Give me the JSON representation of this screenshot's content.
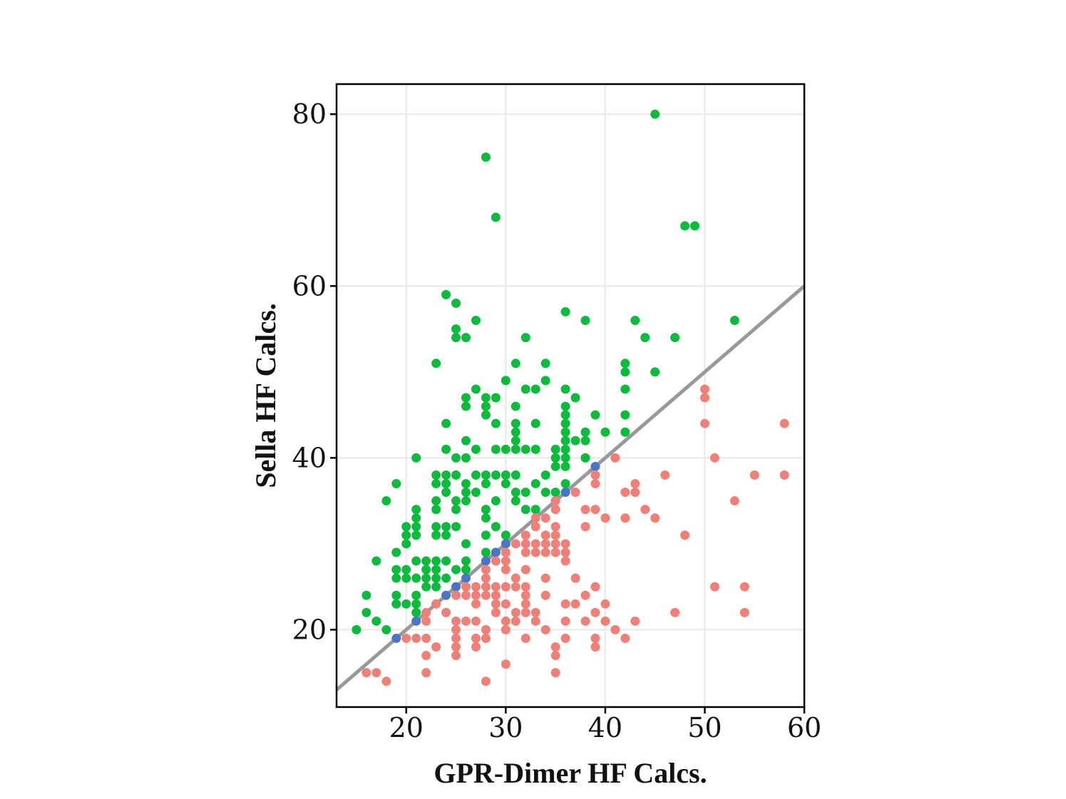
{
  "chart_data": {
    "type": "scatter",
    "title": "",
    "xlabel": "GPR-Dimer HF Calcs.",
    "ylabel": "Sella HF Calcs.",
    "xlim": [
      13,
      60
    ],
    "ylim": [
      11,
      83.5
    ],
    "x_ticks": [
      20,
      30,
      40,
      50,
      60
    ],
    "y_ticks": [
      20,
      40,
      60,
      80
    ],
    "grid": true,
    "legend": "none",
    "reference_line": {
      "from": [
        13,
        13
      ],
      "to": [
        60,
        60
      ],
      "color": "#999999"
    },
    "colors": {
      "above": "#0BBB3B",
      "on": "#4A74C8",
      "below": "#F07F78"
    },
    "series": [
      {
        "color_key": "above",
        "points": [
          [
            45,
            80
          ],
          [
            28,
            75
          ],
          [
            29,
            68
          ],
          [
            48,
            67
          ],
          [
            49,
            67
          ],
          [
            24,
            59
          ],
          [
            25,
            58
          ],
          [
            36,
            57
          ],
          [
            27,
            56
          ],
          [
            38,
            56
          ],
          [
            43,
            56
          ],
          [
            53,
            56
          ],
          [
            25,
            55
          ],
          [
            25,
            54
          ],
          [
            26,
            54
          ],
          [
            32,
            54
          ],
          [
            44,
            54
          ],
          [
            47,
            54
          ],
          [
            23,
            51
          ],
          [
            31,
            51
          ],
          [
            34,
            51
          ],
          [
            42,
            51
          ],
          [
            42,
            50
          ],
          [
            45,
            50
          ],
          [
            30,
            49
          ],
          [
            34,
            49
          ],
          [
            32,
            48
          ],
          [
            33,
            48
          ],
          [
            36,
            48
          ],
          [
            42,
            48
          ],
          [
            27,
            48
          ],
          [
            26,
            47
          ],
          [
            28,
            47
          ],
          [
            29,
            47
          ],
          [
            37,
            47
          ],
          [
            26,
            46
          ],
          [
            28,
            46
          ],
          [
            31,
            46
          ],
          [
            36,
            46
          ],
          [
            28,
            45
          ],
          [
            36,
            45
          ],
          [
            39,
            45
          ],
          [
            42,
            45
          ],
          [
            24,
            44
          ],
          [
            29,
            44
          ],
          [
            31,
            44
          ],
          [
            33,
            44
          ],
          [
            36,
            44
          ],
          [
            31,
            43
          ],
          [
            36,
            43
          ],
          [
            38,
            43
          ],
          [
            40,
            43
          ],
          [
            42,
            43
          ],
          [
            26,
            42
          ],
          [
            31,
            42
          ],
          [
            36,
            42
          ],
          [
            37,
            42
          ],
          [
            38,
            42
          ],
          [
            24,
            41
          ],
          [
            27,
            41
          ],
          [
            29,
            41
          ],
          [
            30,
            41
          ],
          [
            31,
            41
          ],
          [
            32,
            41
          ],
          [
            33,
            41
          ],
          [
            35,
            41
          ],
          [
            36,
            41
          ],
          [
            21,
            40
          ],
          [
            25,
            40
          ],
          [
            26,
            40
          ],
          [
            35,
            40
          ],
          [
            36,
            40
          ],
          [
            38,
            40
          ],
          [
            35,
            39
          ],
          [
            36,
            39
          ],
          [
            23,
            38
          ],
          [
            24,
            38
          ],
          [
            25,
            38
          ],
          [
            27,
            38
          ],
          [
            28,
            38
          ],
          [
            29,
            38
          ],
          [
            30,
            38
          ],
          [
            31,
            38
          ],
          [
            34,
            38
          ],
          [
            19,
            37
          ],
          [
            23,
            37
          ],
          [
            24,
            37
          ],
          [
            26,
            37
          ],
          [
            28,
            37
          ],
          [
            30,
            37
          ],
          [
            33,
            37
          ],
          [
            36,
            37
          ],
          [
            24,
            36
          ],
          [
            26,
            36
          ],
          [
            27,
            36
          ],
          [
            31,
            36
          ],
          [
            32,
            36
          ],
          [
            34,
            36
          ],
          [
            35,
            36
          ],
          [
            18,
            35
          ],
          [
            23,
            35
          ],
          [
            25,
            35
          ],
          [
            26,
            35
          ],
          [
            29,
            35
          ],
          [
            31,
            35
          ],
          [
            21,
            34
          ],
          [
            23,
            34
          ],
          [
            25,
            34
          ],
          [
            28,
            34
          ],
          [
            32,
            34
          ],
          [
            33,
            34
          ],
          [
            21,
            33
          ],
          [
            28,
            33
          ],
          [
            20,
            32
          ],
          [
            21,
            32
          ],
          [
            23,
            32
          ],
          [
            24,
            32
          ],
          [
            25,
            32
          ],
          [
            29,
            32
          ],
          [
            20,
            31
          ],
          [
            21,
            31
          ],
          [
            23,
            31
          ],
          [
            24,
            31
          ],
          [
            28,
            31
          ],
          [
            30,
            31
          ],
          [
            20,
            30
          ],
          [
            26,
            30
          ],
          [
            19,
            29
          ],
          [
            28,
            29
          ],
          [
            17,
            28
          ],
          [
            21,
            28
          ],
          [
            22,
            28
          ],
          [
            23,
            28
          ],
          [
            24,
            28
          ],
          [
            26,
            28
          ],
          [
            19,
            27
          ],
          [
            20,
            27
          ],
          [
            22,
            27
          ],
          [
            23,
            27
          ],
          [
            25,
            27
          ],
          [
            26,
            27
          ],
          [
            19,
            26
          ],
          [
            20,
            26
          ],
          [
            21,
            26
          ],
          [
            22,
            26
          ],
          [
            23,
            26
          ],
          [
            24,
            26
          ],
          [
            22,
            25
          ],
          [
            23,
            25
          ],
          [
            16,
            24
          ],
          [
            19,
            24
          ],
          [
            21,
            24
          ],
          [
            19,
            23
          ],
          [
            20,
            23
          ],
          [
            21,
            23
          ],
          [
            16,
            22
          ],
          [
            21,
            22
          ],
          [
            17,
            21
          ],
          [
            15,
            20
          ],
          [
            18,
            20
          ]
        ]
      },
      {
        "color_key": "on",
        "points": [
          [
            19,
            19
          ],
          [
            21,
            21
          ],
          [
            23,
            23
          ],
          [
            24,
            24
          ],
          [
            25,
            25
          ],
          [
            26,
            26
          ],
          [
            28,
            28
          ],
          [
            29,
            29
          ],
          [
            30,
            30
          ],
          [
            35,
            35
          ],
          [
            36,
            36
          ],
          [
            39,
            39
          ]
        ]
      },
      {
        "color_key": "below",
        "points": [
          [
            50,
            48
          ],
          [
            50,
            47
          ],
          [
            50,
            44
          ],
          [
            58,
            44
          ],
          [
            41,
            40
          ],
          [
            51,
            40
          ],
          [
            39,
            38
          ],
          [
            46,
            38
          ],
          [
            55,
            38
          ],
          [
            58,
            38
          ],
          [
            39,
            37
          ],
          [
            43,
            37
          ],
          [
            37,
            36
          ],
          [
            42,
            36
          ],
          [
            43,
            36
          ],
          [
            35,
            35
          ],
          [
            53,
            35
          ],
          [
            35,
            34
          ],
          [
            38,
            34
          ],
          [
            39,
            34
          ],
          [
            44,
            34
          ],
          [
            33,
            33
          ],
          [
            34,
            33
          ],
          [
            40,
            33
          ],
          [
            42,
            33
          ],
          [
            45,
            33
          ],
          [
            33,
            32
          ],
          [
            35,
            32
          ],
          [
            38,
            32
          ],
          [
            32,
            31
          ],
          [
            34,
            31
          ],
          [
            35,
            31
          ],
          [
            48,
            31
          ],
          [
            31,
            30
          ],
          [
            32,
            30
          ],
          [
            33,
            30
          ],
          [
            34,
            30
          ],
          [
            35,
            30
          ],
          [
            36,
            30
          ],
          [
            30,
            29
          ],
          [
            32,
            29
          ],
          [
            33,
            29
          ],
          [
            34,
            29
          ],
          [
            35,
            29
          ],
          [
            36,
            29
          ],
          [
            29,
            28
          ],
          [
            30,
            28
          ],
          [
            36,
            28
          ],
          [
            28,
            27
          ],
          [
            30,
            27
          ],
          [
            32,
            27
          ],
          [
            28,
            26
          ],
          [
            31,
            26
          ],
          [
            34,
            26
          ],
          [
            37,
            26
          ],
          [
            26,
            25
          ],
          [
            27,
            25
          ],
          [
            28,
            25
          ],
          [
            29,
            25
          ],
          [
            30,
            25
          ],
          [
            31,
            25
          ],
          [
            32,
            25
          ],
          [
            39,
            25
          ],
          [
            51,
            25
          ],
          [
            54,
            25
          ],
          [
            25,
            24
          ],
          [
            26,
            24
          ],
          [
            27,
            24
          ],
          [
            28,
            24
          ],
          [
            29,
            24
          ],
          [
            32,
            24
          ],
          [
            34,
            24
          ],
          [
            38,
            24
          ],
          [
            23,
            23
          ],
          [
            27,
            23
          ],
          [
            29,
            23
          ],
          [
            30,
            23
          ],
          [
            32,
            23
          ],
          [
            36,
            23
          ],
          [
            37,
            23
          ],
          [
            40,
            23
          ],
          [
            22,
            22
          ],
          [
            24,
            22
          ],
          [
            29,
            22
          ],
          [
            31,
            22
          ],
          [
            32,
            22
          ],
          [
            33,
            22
          ],
          [
            39,
            22
          ],
          [
            47,
            22
          ],
          [
            54,
            22
          ],
          [
            22,
            21
          ],
          [
            25,
            21
          ],
          [
            26,
            21
          ],
          [
            27,
            21
          ],
          [
            30,
            21
          ],
          [
            31,
            21
          ],
          [
            33,
            21
          ],
          [
            36,
            21
          ],
          [
            38,
            21
          ],
          [
            40,
            21
          ],
          [
            43,
            21
          ],
          [
            25,
            20
          ],
          [
            28,
            20
          ],
          [
            30,
            20
          ],
          [
            34,
            20
          ],
          [
            41,
            20
          ],
          [
            20,
            19
          ],
          [
            21,
            19
          ],
          [
            22,
            19
          ],
          [
            25,
            19
          ],
          [
            27,
            19
          ],
          [
            28,
            19
          ],
          [
            32,
            19
          ],
          [
            36,
            19
          ],
          [
            39,
            19
          ],
          [
            42,
            19
          ],
          [
            23,
            18
          ],
          [
            25,
            18
          ],
          [
            27,
            18
          ],
          [
            35,
            18
          ],
          [
            39,
            18
          ],
          [
            22,
            17
          ],
          [
            25,
            17
          ],
          [
            35,
            17
          ],
          [
            30,
            16
          ],
          [
            16,
            15
          ],
          [
            17,
            15
          ],
          [
            22,
            15
          ],
          [
            35,
            15
          ],
          [
            18,
            14
          ],
          [
            28,
            14
          ]
        ]
      }
    ]
  }
}
